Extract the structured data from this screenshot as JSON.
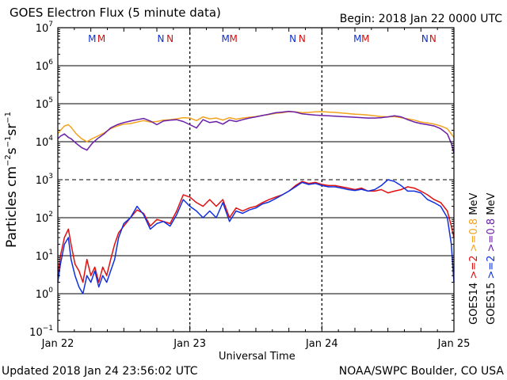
{
  "header": {
    "title": "GOES Electron Flux (5 minute data)",
    "begin": "Begin: 2018 Jan 22 0000 UTC"
  },
  "footer": {
    "updated": "Updated 2018 Jan 24 23:56:02 UTC",
    "credit": "NOAA/SWPC Boulder, CO USA"
  },
  "colors": {
    "goes14_high": "#f2a21e",
    "goes15_high": "#6a1fa8",
    "goes14_low": "#e01010",
    "goes15_low": "#1030e0",
    "marker_m": "#1030c8",
    "marker_n": "#d01010"
  },
  "chart_data": {
    "type": "line",
    "title": "GOES Electron Flux (5 minute data)",
    "xlabel": "Universal Time",
    "ylabel": "Particles cm-2 s-1 sr-1",
    "yscale": "log",
    "ylim_exponent": [
      -1,
      7
    ],
    "y_ticks": [
      {
        "base": "10",
        "exp": "7"
      },
      {
        "base": "10",
        "exp": "6"
      },
      {
        "base": "10",
        "exp": "5"
      },
      {
        "base": "10",
        "exp": "4"
      },
      {
        "base": "10",
        "exp": "3"
      },
      {
        "base": "10",
        "exp": "2"
      },
      {
        "base": "10",
        "exp": "1"
      },
      {
        "base": "10",
        "exp": "0"
      },
      {
        "base": "10",
        "exp": "-1"
      }
    ],
    "x_range_days": [
      0,
      3
    ],
    "x_ticks": [
      {
        "x": 0,
        "label": "Jan 22"
      },
      {
        "x": 1,
        "label": "Jan 23"
      },
      {
        "x": 2,
        "label": "Jan 24"
      },
      {
        "x": 3,
        "label": "Jan 25"
      }
    ],
    "threshold_log": 3,
    "markers": [
      {
        "x": 0.26,
        "label": "M",
        "color": "#1030c8"
      },
      {
        "x": 0.33,
        "label": "M",
        "color": "#d01010"
      },
      {
        "x": 0.78,
        "label": "N",
        "color": "#1030c8"
      },
      {
        "x": 0.85,
        "label": "N",
        "color": "#d01010"
      },
      {
        "x": 1.27,
        "label": "M",
        "color": "#1030c8"
      },
      {
        "x": 1.33,
        "label": "M",
        "color": "#d01010"
      },
      {
        "x": 1.78,
        "label": "N",
        "color": "#1030c8"
      },
      {
        "x": 1.85,
        "label": "N",
        "color": "#d01010"
      },
      {
        "x": 2.27,
        "label": "M",
        "color": "#1030c8"
      },
      {
        "x": 2.33,
        "label": "M",
        "color": "#d01010"
      },
      {
        "x": 2.78,
        "label": "N",
        "color": "#1030c8"
      },
      {
        "x": 2.84,
        "label": "N",
        "color": "#d01010"
      }
    ],
    "legend": {
      "placement": "right",
      "goes14": "GOES14",
      "goes15": "GOES15",
      "low": ">=2",
      "high": ">=0.8",
      "unit": "MeV"
    },
    "series": [
      {
        "name": "GOES14 >=0.8 MeV",
        "color": "#f2a21e",
        "x": [
          0,
          0.02,
          0.05,
          0.08,
          0.1,
          0.14,
          0.18,
          0.22,
          0.26,
          0.3,
          0.35,
          0.4,
          0.45,
          0.5,
          0.55,
          0.6,
          0.65,
          0.7,
          0.75,
          0.8,
          0.85,
          0.9,
          0.95,
          1.0,
          1.05,
          1.1,
          1.15,
          1.2,
          1.25,
          1.3,
          1.35,
          1.4,
          1.45,
          1.5,
          1.55,
          1.6,
          1.65,
          1.7,
          1.75,
          1.8,
          1.85,
          1.9,
          1.95,
          2.0,
          2.05,
          2.1,
          2.15,
          2.2,
          2.25,
          2.3,
          2.35,
          2.4,
          2.45,
          2.5,
          2.55,
          2.6,
          2.65,
          2.7,
          2.75,
          2.8,
          2.85,
          2.9,
          2.95,
          2.98,
          3.0
        ],
        "y": [
          16000.0,
          20000.0,
          26000.0,
          28000.0,
          24000.0,
          16000.0,
          12000.0,
          10000.0,
          12000.0,
          14000.0,
          17000.0,
          22000.0,
          26000.0,
          29000.0,
          30000.0,
          33000.0,
          36000.0,
          33000.0,
          34000.0,
          37000.0,
          38000.0,
          40000.0,
          43000.0,
          42000.0,
          36000.0,
          45000.0,
          40000.0,
          42000.0,
          37000.0,
          43000.0,
          39000.0,
          42000.0,
          44000.0,
          46000.0,
          49000.0,
          52000.0,
          56000.0,
          58000.0,
          62000.0,
          61000.0,
          58000.0,
          59000.0,
          61000.0,
          62000.0,
          60000.0,
          59000.0,
          57000.0,
          55000.0,
          53000.0,
          52000.0,
          50000.0,
          48000.0,
          46000.0,
          45000.0,
          46000.0,
          43000.0,
          40000.0,
          37000.0,
          33000.0,
          31000.0,
          29000.0,
          26000.0,
          22000.0,
          16000.0,
          13000.0
        ]
      },
      {
        "name": "GOES15 >=0.8 MeV",
        "color": "#6a1fa8",
        "x": [
          0,
          0.02,
          0.05,
          0.08,
          0.1,
          0.14,
          0.18,
          0.22,
          0.26,
          0.3,
          0.35,
          0.4,
          0.45,
          0.5,
          0.55,
          0.6,
          0.65,
          0.7,
          0.75,
          0.8,
          0.85,
          0.9,
          0.95,
          1.0,
          1.05,
          1.1,
          1.15,
          1.2,
          1.25,
          1.3,
          1.35,
          1.4,
          1.45,
          1.5,
          1.55,
          1.6,
          1.65,
          1.7,
          1.75,
          1.8,
          1.85,
          1.9,
          1.95,
          2.0,
          2.05,
          2.1,
          2.15,
          2.2,
          2.25,
          2.3,
          2.35,
          2.4,
          2.45,
          2.5,
          2.55,
          2.6,
          2.65,
          2.7,
          2.75,
          2.8,
          2.85,
          2.9,
          2.95,
          2.98,
          3.0
        ],
        "y": [
          12000.0,
          14000.0,
          16000.0,
          13000.0,
          12000.0,
          9000.0,
          7000.0,
          6000.0,
          9000.0,
          12000.0,
          16000.0,
          23000.0,
          28000.0,
          32000.0,
          35000.0,
          38000.0,
          41000.0,
          35000.0,
          28000.0,
          35000.0,
          37000.0,
          38000.0,
          34000.0,
          28000.0,
          23000.0,
          38000.0,
          32000.0,
          34000.0,
          29000.0,
          37000.0,
          34000.0,
          38000.0,
          42000.0,
          45000.0,
          49000.0,
          53000.0,
          58000.0,
          60000.0,
          63000.0,
          60000.0,
          54000.0,
          52000.0,
          50000.0,
          49000.0,
          48000.0,
          47000.0,
          46000.0,
          45000.0,
          44000.0,
          43000.0,
          42000.0,
          42000.0,
          43000.0,
          45000.0,
          48000.0,
          45000.0,
          38000.0,
          33000.0,
          30000.0,
          28000.0,
          26000.0,
          22000.0,
          16000.0,
          9000.0,
          5000.0
        ]
      },
      {
        "name": "GOES14 >=2 MeV",
        "color": "#e01010",
        "x": [
          0,
          0.02,
          0.05,
          0.08,
          0.1,
          0.13,
          0.16,
          0.19,
          0.22,
          0.25,
          0.28,
          0.31,
          0.34,
          0.37,
          0.4,
          0.43,
          0.46,
          0.5,
          0.55,
          0.6,
          0.65,
          0.7,
          0.75,
          0.8,
          0.85,
          0.9,
          0.95,
          1.0,
          1.05,
          1.1,
          1.15,
          1.2,
          1.25,
          1.3,
          1.35,
          1.4,
          1.45,
          1.5,
          1.55,
          1.6,
          1.65,
          1.7,
          1.75,
          1.8,
          1.85,
          1.9,
          1.95,
          2.0,
          2.05,
          2.1,
          2.15,
          2.2,
          2.25,
          2.3,
          2.35,
          2.4,
          2.45,
          2.5,
          2.55,
          2.6,
          2.65,
          2.7,
          2.75,
          2.8,
          2.85,
          2.9,
          2.95,
          2.98,
          3.0
        ],
        "y": [
          3,
          10,
          30,
          50,
          20,
          6,
          4,
          2,
          8,
          3,
          5,
          2,
          5,
          3,
          8,
          20,
          40,
          60,
          100,
          160,
          130,
          60,
          90,
          80,
          70,
          150,
          400,
          350,
          250,
          200,
          300,
          200,
          300,
          100,
          180,
          150,
          180,
          200,
          250,
          300,
          350,
          400,
          500,
          700,
          900,
          800,
          850,
          750,
          700,
          700,
          650,
          600,
          550,
          600,
          500,
          500,
          550,
          450,
          500,
          550,
          650,
          600,
          500,
          400,
          300,
          250,
          150,
          60,
          30
        ]
      },
      {
        "name": "GOES15 >=2 MeV",
        "color": "#1030e0",
        "x": [
          0,
          0.02,
          0.05,
          0.08,
          0.1,
          0.13,
          0.16,
          0.19,
          0.22,
          0.25,
          0.28,
          0.31,
          0.34,
          0.37,
          0.4,
          0.43,
          0.46,
          0.5,
          0.55,
          0.6,
          0.65,
          0.7,
          0.75,
          0.8,
          0.85,
          0.9,
          0.95,
          1.0,
          1.05,
          1.1,
          1.15,
          1.2,
          1.25,
          1.3,
          1.35,
          1.4,
          1.45,
          1.5,
          1.55,
          1.6,
          1.65,
          1.7,
          1.75,
          1.8,
          1.85,
          1.9,
          1.95,
          2.0,
          2.05,
          2.1,
          2.15,
          2.2,
          2.25,
          2.3,
          2.35,
          2.4,
          2.45,
          2.5,
          2.55,
          2.6,
          2.65,
          2.7,
          2.75,
          2.8,
          2.85,
          2.9,
          2.95,
          2.98,
          3.0
        ],
        "y": [
          2,
          6,
          20,
          30,
          8,
          3,
          1.5,
          1,
          3,
          2,
          4,
          1.5,
          3,
          2,
          4,
          8,
          30,
          70,
          100,
          200,
          120,
          50,
          70,
          80,
          60,
          120,
          300,
          200,
          150,
          100,
          150,
          100,
          250,
          80,
          150,
          130,
          160,
          180,
          230,
          260,
          320,
          400,
          500,
          650,
          850,
          750,
          800,
          700,
          650,
          650,
          600,
          550,
          520,
          560,
          500,
          550,
          700,
          1000,
          900,
          700,
          500,
          500,
          450,
          300,
          250,
          200,
          100,
          20,
          2
        ]
      }
    ]
  }
}
